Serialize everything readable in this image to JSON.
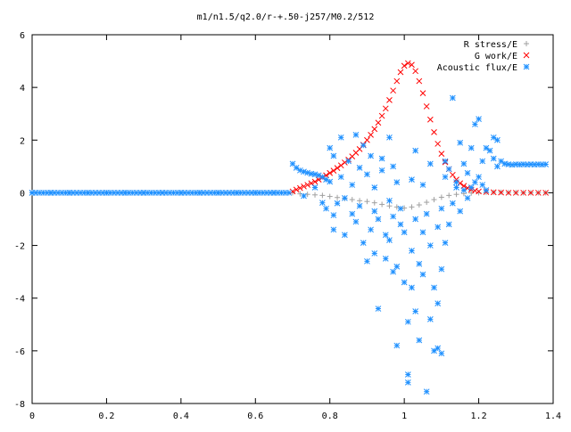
{
  "chart_data": {
    "type": "scatter",
    "title": "m1/n1.5/q2.0/r-+.50-j257/M0.2/512",
    "xlabel": "",
    "ylabel": "",
    "xlim": [
      0,
      1.4
    ],
    "ylim": [
      -8,
      6
    ],
    "xticks": [
      0,
      0.2,
      0.4,
      0.6,
      0.8,
      1,
      1.2,
      1.4
    ],
    "yticks": [
      -8,
      -6,
      -4,
      -2,
      0,
      2,
      4,
      6
    ],
    "xtick_labels": [
      "0",
      "0.2",
      "0.4",
      "0.6",
      "0.8",
      "1",
      "1.2",
      "1.4"
    ],
    "ytick_labels": [
      "-8",
      "-6",
      "-4",
      "-2",
      "0",
      "2",
      "4",
      "6"
    ],
    "grid": false,
    "legend_position": "top-right",
    "series": [
      {
        "name": "R stress/E",
        "marker": "plus",
        "color": "#a0a0a0",
        "points": [
          [
            0.7,
            0.0
          ],
          [
            0.72,
            -0.04
          ],
          [
            0.74,
            -0.06
          ],
          [
            0.76,
            -0.08
          ],
          [
            0.78,
            -0.1
          ],
          [
            0.8,
            -0.14
          ],
          [
            0.82,
            -0.18
          ],
          [
            0.84,
            -0.22
          ],
          [
            0.86,
            -0.26
          ],
          [
            0.88,
            -0.3
          ],
          [
            0.9,
            -0.33
          ],
          [
            0.92,
            -0.38
          ],
          [
            0.94,
            -0.44
          ],
          [
            0.96,
            -0.5
          ],
          [
            0.98,
            -0.54
          ],
          [
            1.0,
            -0.58
          ],
          [
            1.02,
            -0.54
          ],
          [
            1.04,
            -0.46
          ],
          [
            1.06,
            -0.36
          ],
          [
            1.08,
            -0.26
          ],
          [
            1.1,
            -0.17
          ],
          [
            1.12,
            -0.1
          ],
          [
            1.14,
            -0.06
          ],
          [
            1.16,
            -0.03
          ],
          [
            1.18,
            -0.01
          ],
          [
            1.2,
            0.0
          ],
          [
            1.22,
            0.02
          ],
          [
            1.24,
            0.02
          ],
          [
            1.26,
            0.02
          ],
          [
            1.28,
            0.01
          ],
          [
            1.3,
            0.01
          ],
          [
            1.32,
            0.0
          ],
          [
            1.34,
            0.0
          ],
          [
            1.36,
            0.0
          ],
          [
            1.38,
            0.0
          ]
        ]
      },
      {
        "name": "G work/E",
        "marker": "cross",
        "color": "#ff0000",
        "points": [
          [
            0.7,
            0.05
          ],
          [
            0.71,
            0.12
          ],
          [
            0.72,
            0.18
          ],
          [
            0.73,
            0.24
          ],
          [
            0.74,
            0.3
          ],
          [
            0.75,
            0.36
          ],
          [
            0.76,
            0.42
          ],
          [
            0.77,
            0.5
          ],
          [
            0.78,
            0.58
          ],
          [
            0.79,
            0.66
          ],
          [
            0.8,
            0.75
          ],
          [
            0.81,
            0.84
          ],
          [
            0.82,
            0.94
          ],
          [
            0.83,
            1.04
          ],
          [
            0.84,
            1.15
          ],
          [
            0.85,
            1.26
          ],
          [
            0.86,
            1.38
          ],
          [
            0.87,
            1.52
          ],
          [
            0.88,
            1.66
          ],
          [
            0.89,
            1.82
          ],
          [
            0.9,
            2.0
          ],
          [
            0.91,
            2.2
          ],
          [
            0.92,
            2.42
          ],
          [
            0.93,
            2.66
          ],
          [
            0.94,
            2.92
          ],
          [
            0.95,
            3.2
          ],
          [
            0.96,
            3.52
          ],
          [
            0.97,
            3.88
          ],
          [
            0.98,
            4.24
          ],
          [
            0.99,
            4.58
          ],
          [
            1.0,
            4.82
          ],
          [
            1.01,
            4.92
          ],
          [
            1.02,
            4.86
          ],
          [
            1.03,
            4.62
          ],
          [
            1.04,
            4.24
          ],
          [
            1.05,
            3.78
          ],
          [
            1.06,
            3.28
          ],
          [
            1.07,
            2.78
          ],
          [
            1.08,
            2.3
          ],
          [
            1.09,
            1.86
          ],
          [
            1.1,
            1.48
          ],
          [
            1.11,
            1.16
          ],
          [
            1.12,
            0.9
          ],
          [
            1.13,
            0.68
          ],
          [
            1.14,
            0.5
          ],
          [
            1.15,
            0.36
          ],
          [
            1.16,
            0.26
          ],
          [
            1.17,
            0.18
          ],
          [
            1.18,
            0.12
          ],
          [
            1.19,
            0.08
          ],
          [
            1.2,
            0.05
          ],
          [
            1.22,
            0.03
          ],
          [
            1.24,
            0.02
          ],
          [
            1.26,
            0.01
          ],
          [
            1.28,
            0.0
          ],
          [
            1.3,
            0.0
          ],
          [
            1.32,
            0.0
          ],
          [
            1.34,
            0.0
          ],
          [
            1.36,
            0.0
          ],
          [
            1.38,
            0.0
          ]
        ]
      },
      {
        "name": "Acoustic flux/E",
        "marker": "star",
        "color": "#1e90ff",
        "points": [
          [
            0.0,
            0.0
          ],
          [
            0.05,
            0.0
          ],
          [
            0.1,
            0.0
          ],
          [
            0.15,
            0.0
          ],
          [
            0.2,
            0.0
          ],
          [
            0.25,
            0.0
          ],
          [
            0.3,
            0.0
          ],
          [
            0.35,
            0.0
          ],
          [
            0.4,
            0.0
          ],
          [
            0.45,
            0.0
          ],
          [
            0.5,
            0.0
          ],
          [
            0.55,
            0.0
          ],
          [
            0.6,
            0.0
          ],
          [
            0.65,
            0.0
          ],
          [
            0.69,
            0.0
          ],
          [
            0.7,
            1.1
          ],
          [
            0.71,
            0.95
          ],
          [
            0.72,
            0.85
          ],
          [
            0.73,
            0.8
          ],
          [
            0.74,
            0.76
          ],
          [
            0.75,
            0.72
          ],
          [
            0.76,
            0.7
          ],
          [
            0.77,
            0.66
          ],
          [
            0.78,
            0.6
          ],
          [
            0.79,
            0.5
          ],
          [
            0.8,
            0.42
          ],
          [
            0.73,
            -0.12
          ],
          [
            0.76,
            0.2
          ],
          [
            0.78,
            -0.38
          ],
          [
            0.79,
            -0.6
          ],
          [
            0.8,
            1.7
          ],
          [
            0.81,
            1.4
          ],
          [
            0.81,
            -0.85
          ],
          [
            0.81,
            -1.4
          ],
          [
            0.82,
            -0.4
          ],
          [
            0.83,
            2.1
          ],
          [
            0.83,
            0.6
          ],
          [
            0.84,
            -0.2
          ],
          [
            0.84,
            -1.6
          ],
          [
            0.85,
            1.2
          ],
          [
            0.86,
            -0.8
          ],
          [
            0.86,
            0.3
          ],
          [
            0.87,
            2.2
          ],
          [
            0.87,
            -1.1
          ],
          [
            0.88,
            0.95
          ],
          [
            0.88,
            -0.5
          ],
          [
            0.89,
            1.8
          ],
          [
            0.89,
            -1.9
          ],
          [
            0.9,
            -2.6
          ],
          [
            0.9,
            0.7
          ],
          [
            0.91,
            -1.4
          ],
          [
            0.91,
            1.4
          ],
          [
            0.92,
            -0.7
          ],
          [
            0.92,
            0.2
          ],
          [
            0.92,
            -2.3
          ],
          [
            0.93,
            -4.4
          ],
          [
            0.93,
            -1.0
          ],
          [
            0.94,
            0.85
          ],
          [
            0.94,
            1.3
          ],
          [
            0.95,
            -1.6
          ],
          [
            0.95,
            -2.5
          ],
          [
            0.96,
            2.1
          ],
          [
            0.96,
            -0.3
          ],
          [
            0.96,
            -1.8
          ],
          [
            0.97,
            -3.0
          ],
          [
            0.97,
            1.0
          ],
          [
            0.97,
            -0.9
          ],
          [
            0.98,
            0.4
          ],
          [
            0.98,
            -2.8
          ],
          [
            0.98,
            -5.8
          ],
          [
            0.99,
            -1.2
          ],
          [
            0.99,
            -0.6
          ],
          [
            1.0,
            -1.5
          ],
          [
            1.0,
            -3.4
          ],
          [
            1.01,
            -7.2
          ],
          [
            1.01,
            -6.9
          ],
          [
            1.01,
            -4.9
          ],
          [
            1.02,
            -3.6
          ],
          [
            1.02,
            -2.2
          ],
          [
            1.02,
            0.5
          ],
          [
            1.03,
            -4.5
          ],
          [
            1.03,
            -1.0
          ],
          [
            1.03,
            1.6
          ],
          [
            1.04,
            -2.7
          ],
          [
            1.04,
            -5.6
          ],
          [
            1.05,
            -3.1
          ],
          [
            1.05,
            -1.5
          ],
          [
            1.05,
            0.3
          ],
          [
            1.06,
            -7.55
          ],
          [
            1.06,
            -0.8
          ],
          [
            1.07,
            -4.8
          ],
          [
            1.07,
            -2.0
          ],
          [
            1.07,
            1.1
          ],
          [
            1.08,
            -6.0
          ],
          [
            1.08,
            -3.6
          ],
          [
            1.09,
            -5.9
          ],
          [
            1.09,
            -4.2
          ],
          [
            1.09,
            -1.3
          ],
          [
            1.1,
            -6.1
          ],
          [
            1.1,
            -2.9
          ],
          [
            1.1,
            -0.6
          ],
          [
            1.11,
            -1.9
          ],
          [
            1.11,
            0.6
          ],
          [
            1.11,
            1.2
          ],
          [
            1.12,
            -1.2
          ],
          [
            1.12,
            0.9
          ],
          [
            1.13,
            -0.4
          ],
          [
            1.13,
            3.6
          ],
          [
            1.14,
            0.2
          ],
          [
            1.14,
            0.4
          ],
          [
            1.15,
            1.9
          ],
          [
            1.15,
            -0.7
          ],
          [
            1.16,
            0.1
          ],
          [
            1.16,
            1.1
          ],
          [
            1.17,
            0.75
          ],
          [
            1.17,
            -0.2
          ],
          [
            1.18,
            0.2
          ],
          [
            1.18,
            1.7
          ],
          [
            1.19,
            0.4
          ],
          [
            1.19,
            2.6
          ],
          [
            1.2,
            2.8
          ],
          [
            1.2,
            0.6
          ],
          [
            1.21,
            1.2
          ],
          [
            1.21,
            0.3
          ],
          [
            1.22,
            1.7
          ],
          [
            1.22,
            0.1
          ],
          [
            1.23,
            1.6
          ],
          [
            1.24,
            2.1
          ],
          [
            1.24,
            1.3
          ],
          [
            1.25,
            1.0
          ],
          [
            1.25,
            2.0
          ],
          [
            1.26,
            1.2
          ],
          [
            1.27,
            1.1
          ],
          [
            1.28,
            1.08
          ],
          [
            1.29,
            1.06
          ],
          [
            1.3,
            1.08
          ],
          [
            1.31,
            1.07
          ],
          [
            1.32,
            1.08
          ],
          [
            1.33,
            1.07
          ],
          [
            1.34,
            1.08
          ],
          [
            1.35,
            1.07
          ],
          [
            1.36,
            1.08
          ],
          [
            1.37,
            1.07
          ],
          [
            1.38,
            1.08
          ]
        ]
      }
    ]
  }
}
